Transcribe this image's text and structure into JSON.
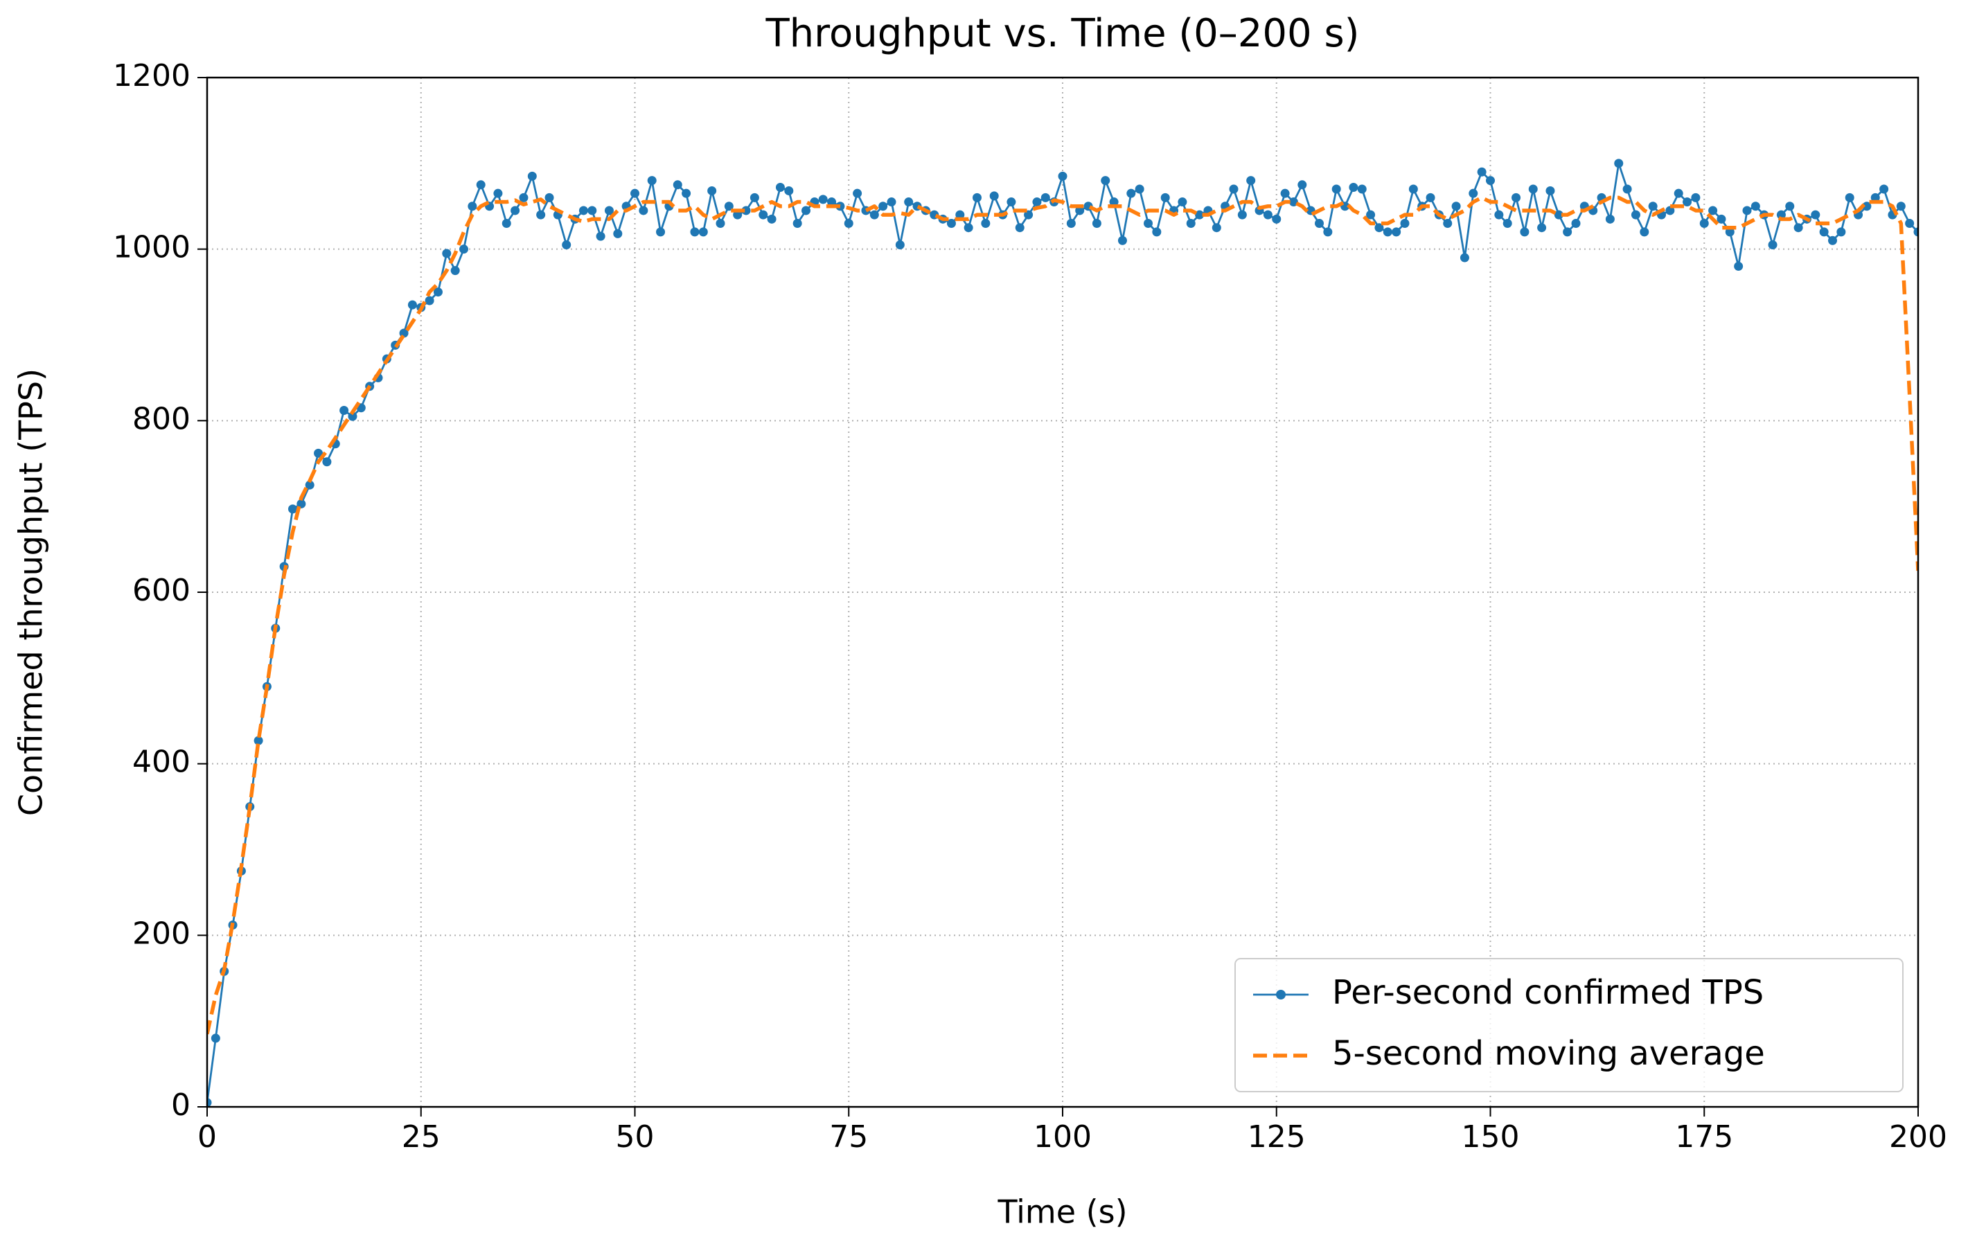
{
  "chart_data": {
    "type": "line",
    "title": "Throughput vs. Time (0–200 s)",
    "x_label": "Time (s)",
    "y_label": "Confirmed throughput (TPS)",
    "x": [
      0,
      1,
      2,
      3,
      4,
      5,
      6,
      7,
      8,
      9,
      10,
      11,
      12,
      13,
      14,
      15,
      16,
      17,
      18,
      19,
      20,
      21,
      22,
      23,
      24,
      25,
      26,
      27,
      28,
      29,
      30,
      31,
      32,
      33,
      34,
      35,
      36,
      37,
      38,
      39,
      40,
      41,
      42,
      43,
      44,
      45,
      46,
      47,
      48,
      49,
      50,
      51,
      52,
      53,
      54,
      55,
      56,
      57,
      58,
      59,
      60,
      61,
      62,
      63,
      64,
      65,
      66,
      67,
      68,
      69,
      70,
      71,
      72,
      73,
      74,
      75,
      76,
      77,
      78,
      79,
      80,
      81,
      82,
      83,
      84,
      85,
      86,
      87,
      88,
      89,
      90,
      91,
      92,
      93,
      94,
      95,
      96,
      97,
      98,
      99,
      100,
      101,
      102,
      103,
      104,
      105,
      106,
      107,
      108,
      109,
      110,
      111,
      112,
      113,
      114,
      115,
      116,
      117,
      118,
      119,
      120,
      121,
      122,
      123,
      124,
      125,
      126,
      127,
      128,
      129,
      130,
      131,
      132,
      133,
      134,
      135,
      136,
      137,
      138,
      139,
      140,
      141,
      142,
      143,
      144,
      145,
      146,
      147,
      148,
      149,
      150,
      151,
      152,
      153,
      154,
      155,
      156,
      157,
      158,
      159,
      160,
      161,
      162,
      163,
      164,
      165,
      166,
      167,
      168,
      169,
      170,
      171,
      172,
      173,
      174,
      175,
      176,
      177,
      178,
      179,
      180,
      181,
      182,
      183,
      184,
      185,
      186,
      187,
      188,
      189,
      190,
      191,
      192,
      193,
      194,
      195,
      196,
      197,
      198,
      199,
      200
    ],
    "series": [
      {
        "name": "Per-second confirmed TPS",
        "color": "#1f77b4",
        "style": "solid",
        "marker": true,
        "values": [
          5,
          80,
          158,
          212,
          275,
          350,
          427,
          490,
          558,
          630,
          697,
          703,
          725,
          762,
          752,
          773,
          812,
          805,
          815,
          840,
          850,
          872,
          888,
          902,
          935,
          932,
          940,
          950,
          995,
          975,
          1000,
          1050,
          1075,
          1050,
          1065,
          1030,
          1045,
          1060,
          1085,
          1040,
          1060,
          1040,
          1005,
          1035,
          1045,
          1045,
          1015,
          1045,
          1018,
          1050,
          1065,
          1045,
          1080,
          1020,
          1050,
          1075,
          1065,
          1020,
          1020,
          1068,
          1030,
          1050,
          1040,
          1045,
          1060,
          1040,
          1035,
          1072,
          1068,
          1030,
          1045,
          1055,
          1058,
          1055,
          1050,
          1030,
          1065,
          1045,
          1040,
          1050,
          1055,
          1005,
          1055,
          1050,
          1045,
          1040,
          1035,
          1030,
          1040,
          1025,
          1060,
          1030,
          1062,
          1040,
          1055,
          1025,
          1040,
          1055,
          1060,
          1055,
          1085,
          1030,
          1045,
          1050,
          1030,
          1080,
          1055,
          1010,
          1065,
          1070,
          1030,
          1020,
          1060,
          1045,
          1055,
          1030,
          1040,
          1045,
          1025,
          1050,
          1070,
          1040,
          1080,
          1045,
          1040,
          1035,
          1065,
          1055,
          1075,
          1045,
          1030,
          1020,
          1070,
          1050,
          1072,
          1070,
          1040,
          1025,
          1020,
          1020,
          1030,
          1070,
          1050,
          1060,
          1040,
          1030,
          1050,
          990,
          1065,
          1090,
          1080,
          1040,
          1030,
          1060,
          1020,
          1070,
          1025,
          1068,
          1040,
          1020,
          1030,
          1050,
          1045,
          1060,
          1035,
          1100,
          1070,
          1040,
          1020,
          1050,
          1040,
          1045,
          1065,
          1055,
          1060,
          1030,
          1045,
          1035,
          1020,
          980,
          1045,
          1050,
          1040,
          1005,
          1040,
          1050,
          1025,
          1035,
          1040,
          1020,
          1010,
          1020,
          1060,
          1040,
          1050,
          1060,
          1070,
          1040,
          1050,
          1030,
          1020
        ]
      },
      {
        "name": "5-second moving average",
        "color": "#ff7f0e",
        "style": "dashed",
        "marker": false,
        "values": [
          85,
          130,
          160,
          215,
          280,
          350,
          427,
          490,
          560,
          620,
          670,
          710,
          730,
          752,
          765,
          780,
          795,
          810,
          825,
          840,
          855,
          870,
          885,
          900,
          915,
          930,
          950,
          960,
          975,
          995,
          1020,
          1040,
          1050,
          1055,
          1055,
          1055,
          1057,
          1052,
          1055,
          1058,
          1050,
          1045,
          1040,
          1035,
          1032,
          1035,
          1035,
          1035,
          1045,
          1045,
          1050,
          1055,
          1055,
          1055,
          1055,
          1045,
          1045,
          1050,
          1040,
          1035,
          1040,
          1045,
          1045,
          1045,
          1045,
          1050,
          1055,
          1050,
          1050,
          1055,
          1055,
          1050,
          1050,
          1050,
          1050,
          1048,
          1045,
          1045,
          1050,
          1040,
          1040,
          1042,
          1040,
          1050,
          1045,
          1040,
          1035,
          1035,
          1035,
          1035,
          1040,
          1040,
          1040,
          1040,
          1045,
          1045,
          1045,
          1048,
          1050,
          1057,
          1055,
          1050,
          1050,
          1050,
          1045,
          1050,
          1050,
          1050,
          1045,
          1040,
          1045,
          1045,
          1045,
          1040,
          1045,
          1045,
          1040,
          1040,
          1045,
          1045,
          1050,
          1055,
          1055,
          1048,
          1050,
          1050,
          1055,
          1055,
          1050,
          1040,
          1045,
          1050,
          1050,
          1055,
          1045,
          1040,
          1030,
          1030,
          1030,
          1035,
          1040,
          1040,
          1050,
          1050,
          1040,
          1035,
          1040,
          1045,
          1055,
          1060,
          1055,
          1055,
          1050,
          1045,
          1045,
          1045,
          1045,
          1045,
          1040,
          1040,
          1045,
          1045,
          1050,
          1055,
          1060,
          1060,
          1055,
          1055,
          1045,
          1040,
          1045,
          1050,
          1050,
          1050,
          1045,
          1045,
          1035,
          1025,
          1025,
          1025,
          1030,
          1035,
          1040,
          1040,
          1035,
          1035,
          1040,
          1035,
          1030,
          1030,
          1030,
          1035,
          1040,
          1045,
          1055,
          1055,
          1055,
          1050,
          1030,
          830,
          625
        ]
      }
    ],
    "xlim": [
      0,
      200
    ],
    "xticks": [
      0,
      25,
      50,
      75,
      100,
      125,
      150,
      175,
      200
    ],
    "ylim": [
      0,
      1200
    ],
    "yticks": [
      0,
      200,
      400,
      600,
      800,
      1000,
      1200
    ],
    "grid": true,
    "legend": "lower right"
  }
}
